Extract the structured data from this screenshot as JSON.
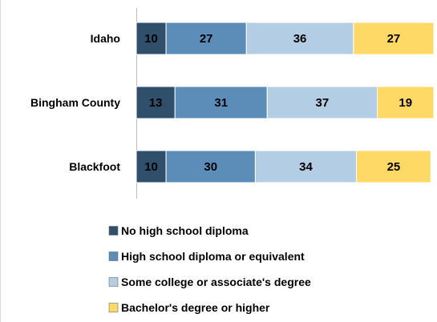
{
  "chart_data": {
    "type": "bar",
    "orientation": "horizontal",
    "stacked": true,
    "categories": [
      "Idaho",
      "Bingham County",
      "Blackfoot"
    ],
    "series": [
      {
        "name": "No high school diploma",
        "values": [
          10,
          13,
          10
        ],
        "color": "#2f4f6b"
      },
      {
        "name": "High school diploma or equivalent",
        "values": [
          27,
          31,
          30
        ],
        "color": "#5b8db8"
      },
      {
        "name": "Some college or associate's degree",
        "values": [
          36,
          37,
          34
        ],
        "color": "#b3cde4"
      },
      {
        "name": "Bachelor's degree or higher",
        "values": [
          27,
          19,
          25
        ],
        "color": "#ffd966"
      }
    ],
    "xlim": [
      0,
      100
    ],
    "grid": false,
    "legend_position": "bottom"
  }
}
